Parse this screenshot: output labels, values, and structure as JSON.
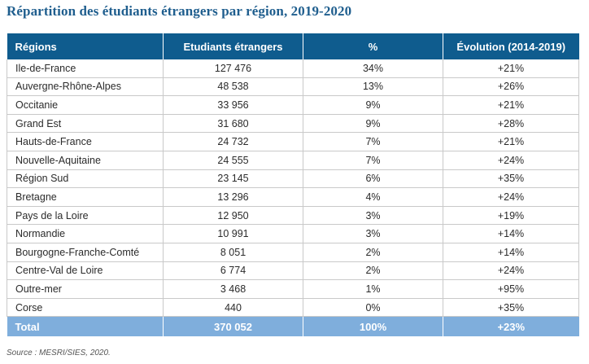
{
  "title": "Répartition des étudiants étrangers par région, 2019-2020",
  "table": {
    "headers": [
      "Régions",
      "Etudiants étrangers",
      "%",
      "Évolution (2014-2019)"
    ],
    "rows": [
      [
        "Ile-de-France",
        "127 476",
        "34%",
        "+21%"
      ],
      [
        "Auvergne-Rhône-Alpes",
        "48 538",
        "13%",
        "+26%"
      ],
      [
        "Occitanie",
        "33 956",
        "9%",
        "+21%"
      ],
      [
        "Grand Est",
        "31 680",
        "9%",
        "+28%"
      ],
      [
        "Hauts-de-France",
        "24 732",
        "7%",
        "+21%"
      ],
      [
        "Nouvelle-Aquitaine",
        "24 555",
        "7%",
        "+24%"
      ],
      [
        "Région Sud",
        "23 145",
        "6%",
        "+35%"
      ],
      [
        "Bretagne",
        "13 296",
        "4%",
        "+24%"
      ],
      [
        "Pays de la Loire",
        "12 950",
        "3%",
        "+19%"
      ],
      [
        "Normandie",
        "10 991",
        "3%",
        "+14%"
      ],
      [
        "Bourgogne-Franche-Comté",
        "8 051",
        "2%",
        "+14%"
      ],
      [
        "Centre-Val de Loire",
        "6 774",
        "2%",
        "+24%"
      ],
      [
        "Outre-mer",
        "3 468",
        "1%",
        "+95%"
      ],
      [
        "Corse",
        "440",
        "0%",
        "+35%"
      ]
    ],
    "total": [
      "Total",
      "370 052",
      "100%",
      "+23%"
    ]
  },
  "source": "Source : MESRI/SIES, 2020.",
  "colors": {
    "title": "#1f5e8e",
    "header_bg": "#0f5c8e",
    "total_bg": "#7faedc"
  }
}
